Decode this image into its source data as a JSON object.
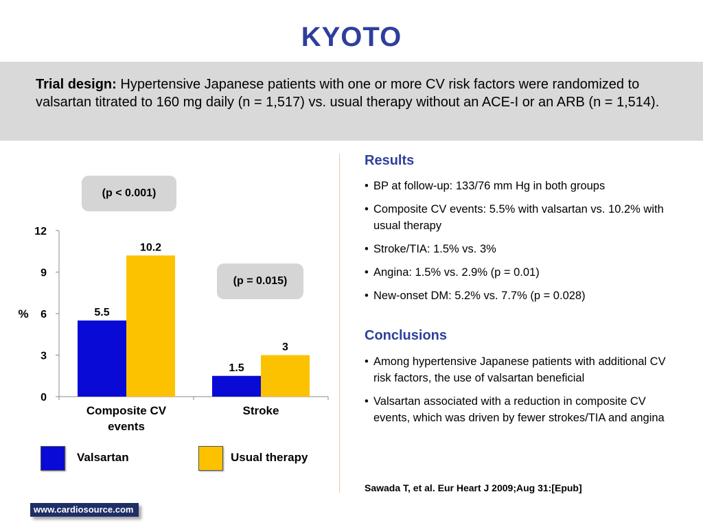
{
  "title": "KYOTO",
  "trial_design": {
    "label": "Trial design:",
    "text": " Hypertensive Japanese patients with one or more CV risk factors were randomized to valsartan titrated to 160 mg daily (n = 1,517) vs. usual therapy without an ACE-I or an ARB (n = 1,514)."
  },
  "annotations": {
    "p1": "(p < 0.001)",
    "p2": "(p = 0.015)"
  },
  "chart_data": {
    "type": "bar",
    "categories": [
      "Composite CV events",
      "Stroke"
    ],
    "category_lines": [
      [
        "Composite CV",
        "events"
      ],
      [
        "Stroke"
      ]
    ],
    "series": [
      {
        "name": "Valsartan",
        "values": [
          5.5,
          1.5
        ],
        "color": "#0a0ad6"
      },
      {
        "name": "Usual therapy",
        "values": [
          10.2,
          3
        ],
        "color": "#fcc200"
      }
    ],
    "data_labels": [
      [
        "5.5",
        "1.5"
      ],
      [
        "10.2",
        "3"
      ]
    ],
    "ylabel": "%",
    "ylim": [
      0,
      12
    ],
    "yticks": [
      0,
      3,
      6,
      9,
      12
    ],
    "legend": "bottom"
  },
  "results": {
    "heading": "Results",
    "items": [
      "BP at follow-up: 133/76 mm Hg in both groups",
      "Composite CV events: 5.5% with valsartan vs. 10.2% with usual therapy",
      "Stroke/TIA: 1.5% vs. 3%",
      "Angina: 1.5% vs. 2.9% (p = 0.01)",
      "New-onset DM: 5.2% vs. 7.7% (p = 0.028)"
    ]
  },
  "conclusions": {
    "heading": "Conclusions",
    "items": [
      "Among hypertensive Japanese patients with additional CV risk factors, the use of valsartan beneficial",
      "Valsartan associated with a reduction in composite CV events, which was driven by fewer strokes/TIA and angina"
    ]
  },
  "citation": "Sawada T, et al. Eur Heart J 2009;Aug 31:[Epub]",
  "site": "www.cardiosource.com"
}
